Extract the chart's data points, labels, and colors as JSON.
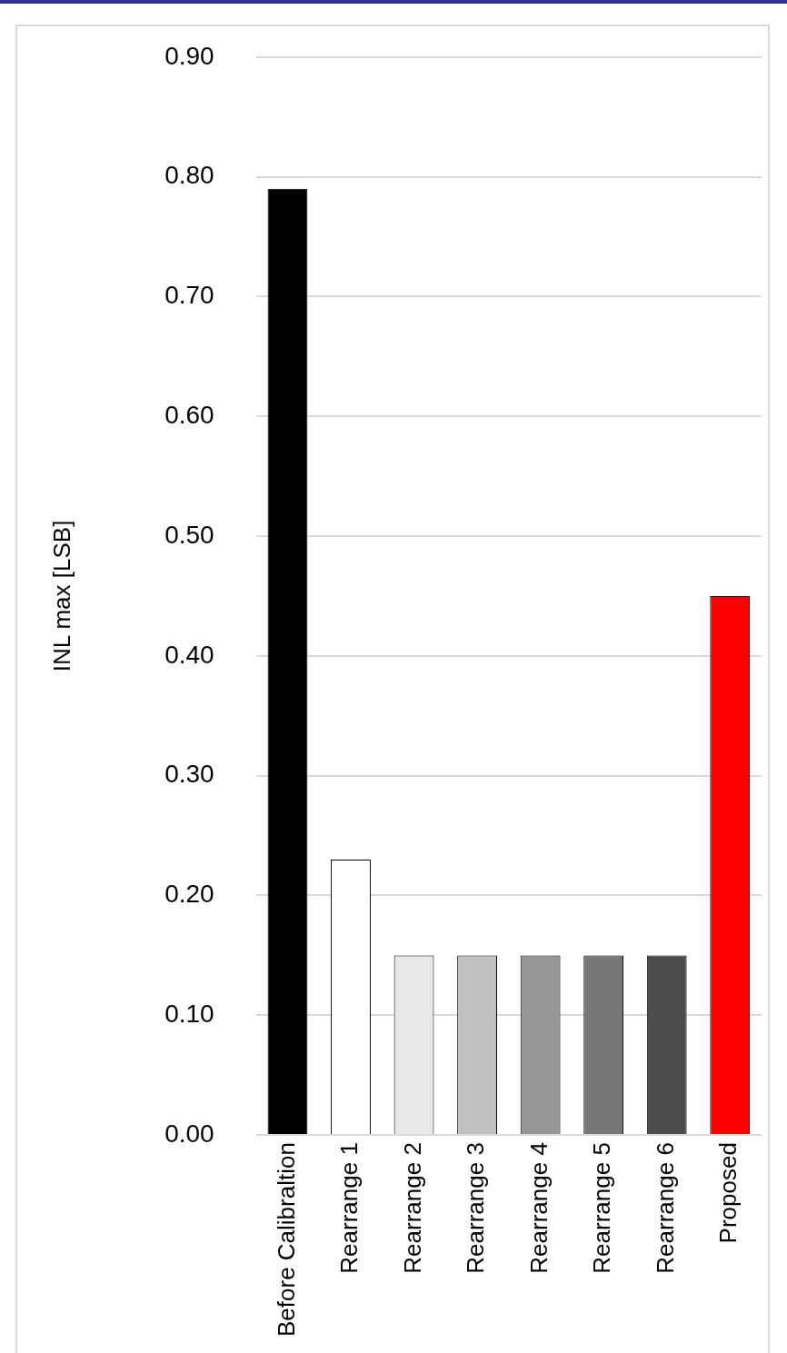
{
  "chart_data": {
    "type": "bar",
    "ylabel": "INL max [LSB]",
    "categories": [
      "Before Calibraltion",
      "Rearrange 1",
      "Rearrange 2",
      "Rearrange 3",
      "Rearrange 4",
      "Rearrange 5",
      "Rearrange 6",
      "Proposed"
    ],
    "values": [
      0.79,
      0.23,
      0.15,
      0.15,
      0.15,
      0.15,
      0.15,
      0.45
    ],
    "colors": [
      "#000000",
      "#ffffff",
      "#e8e8e8",
      "#c0c0c0",
      "#969696",
      "#777777",
      "#4d4d4d",
      "#ff0000"
    ],
    "ylim": [
      0,
      0.9
    ],
    "yticks": [
      {
        "value": 0,
        "label": "0.00"
      },
      {
        "value": 0.1,
        "label": "0.10"
      },
      {
        "value": 0.2,
        "label": "0.20"
      },
      {
        "value": 0.3,
        "label": "0.30"
      },
      {
        "value": 0.4,
        "label": "0.40"
      },
      {
        "value": 0.5,
        "label": "0.50"
      },
      {
        "value": 0.6,
        "label": "0.60"
      },
      {
        "value": 0.7,
        "label": "0.70"
      },
      {
        "value": 0.8,
        "label": "0.80"
      },
      {
        "value": 0.9,
        "label": "0.90"
      }
    ],
    "grid": "y",
    "legend": false
  }
}
